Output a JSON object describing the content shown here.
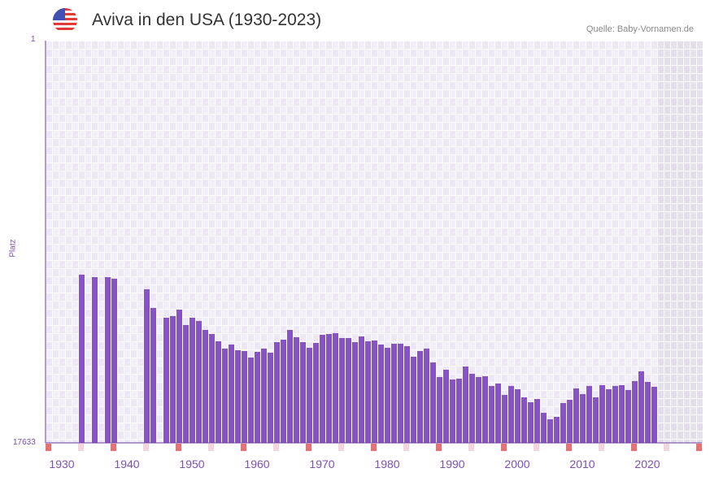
{
  "header": {
    "title": "Aviva in den USA (1930-2023)",
    "source": "Quelle: Baby-Vornamen.de",
    "flag_icon": "us-flag-icon"
  },
  "chart_data": {
    "type": "bar",
    "title": "Aviva in den USA (1930-2023)",
    "xlabel": "",
    "ylabel": "Platz",
    "y_reversed": true,
    "ylim": [
      1,
      17633
    ],
    "y_tick_labels": [
      "1",
      "17633"
    ],
    "xlim": [
      1928,
      2028
    ],
    "x_tick_labels": [
      "1930",
      "1940",
      "1950",
      "1960",
      "1970",
      "1980",
      "1990",
      "2000",
      "2010",
      "2020"
    ],
    "no_data_from": 2022,
    "grid": true,
    "colors": {
      "bar": "#8a52c7",
      "axis": "#6a3a9e",
      "marker": "#e57373",
      "marker_light": "#f5d5dd",
      "text": "#7b4fb5"
    },
    "years": [
      1933,
      1935,
      1937,
      1938,
      1943,
      1944,
      1946,
      1947,
      1948,
      1949,
      1950,
      1951,
      1952,
      1953,
      1954,
      1955,
      1956,
      1957,
      1958,
      1959,
      1960,
      1961,
      1962,
      1963,
      1964,
      1965,
      1966,
      1967,
      1968,
      1969,
      1970,
      1971,
      1972,
      1973,
      1974,
      1975,
      1976,
      1977,
      1978,
      1979,
      1980,
      1981,
      1982,
      1983,
      1984,
      1985,
      1986,
      1987,
      1988,
      1989,
      1990,
      1991,
      1992,
      1993,
      1994,
      1995,
      1996,
      1997,
      1998,
      1999,
      2000,
      2001,
      2002,
      2003,
      2004,
      2005,
      2006,
      2007,
      2008,
      2009,
      2010,
      2011,
      2012,
      2013,
      2014,
      2015,
      2016,
      2017,
      2018,
      2019,
      2020,
      2021
    ],
    "values": [
      10260,
      10366,
      10366,
      10437,
      10900,
      11719,
      12146,
      12075,
      11790,
      12468,
      12146,
      12289,
      12682,
      12860,
      13180,
      13500,
      13323,
      13572,
      13608,
      13893,
      13643,
      13500,
      13679,
      13216,
      13109,
      12682,
      13002,
      13216,
      13465,
      13252,
      12895,
      12860,
      12824,
      13038,
      13038,
      13216,
      12967,
      13180,
      13145,
      13323,
      13465,
      13287,
      13287,
      13394,
      13857,
      13608,
      13500,
      14106,
      14748,
      14427,
      14855,
      14819,
      14285,
      14605,
      14748,
      14712,
      15139,
      15032,
      15531,
      15139,
      15281,
      15638,
      15852,
      15709,
      16315,
      16600,
      16493,
      15888,
      15745,
      15246,
      15495,
      15139,
      15638,
      15104,
      15281,
      15139,
      15104,
      15317,
      14926,
      14498,
      14961,
      15175
    ]
  }
}
